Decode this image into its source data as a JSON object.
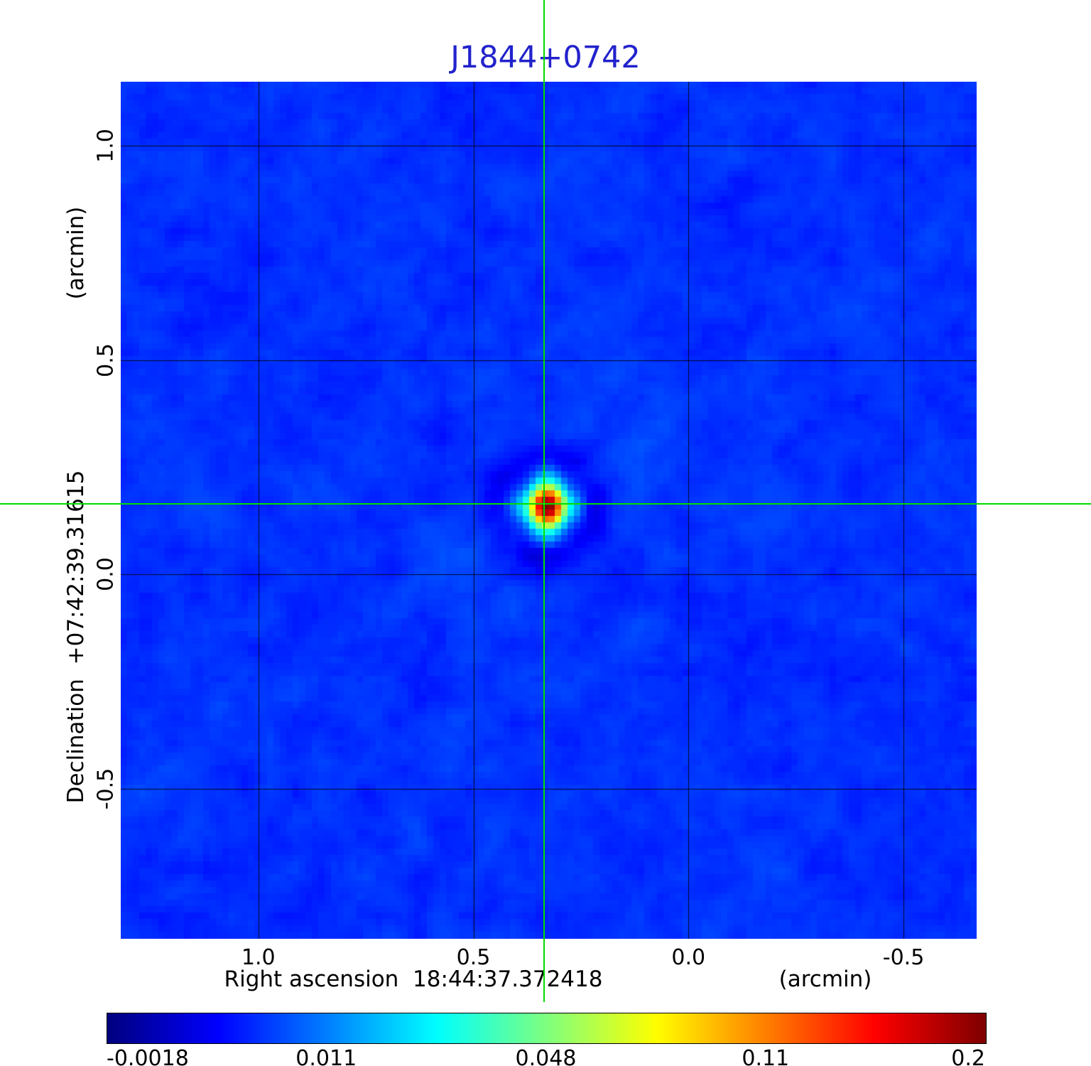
{
  "figure": {
    "title": "J1844+0742",
    "title_color": "#2222cc"
  },
  "y_axis": {
    "label": "Declination  +07:42:39.31615",
    "unit": "(arcmin)",
    "ticks": [
      "1.0",
      "0.5",
      "0.0",
      "-0.5"
    ]
  },
  "x_axis": {
    "label": "Right ascension  18:44:37.372418",
    "unit": "(arcmin)",
    "ticks": [
      "1.0",
      "0.5",
      "0.0",
      "-0.5"
    ]
  },
  "colorbar": {
    "ticks": [
      "-0.0018",
      "0.011",
      "0.048",
      "0.11",
      "0.2"
    ]
  },
  "chart_data": {
    "type": "heatmap",
    "title": "J1844+0742",
    "xlabel": "Right ascension 18:44:37.372418 (arcmin)",
    "ylabel": "Declination +07:42:39.31615 (arcmin)",
    "x_range_arcmin": [
      1.32,
      -0.67
    ],
    "y_range_arcmin": [
      -0.85,
      1.15
    ],
    "x_ticks_arcmin": [
      1.0,
      0.5,
      0.0,
      -0.5
    ],
    "y_ticks_arcmin": [
      1.0,
      0.5,
      0.0,
      -0.5
    ],
    "grid": true,
    "colormap": "jet",
    "color_scale": "sqrt",
    "value_min": -0.0018,
    "value_max": 0.2,
    "colorbar_ticks": [
      -0.0018,
      0.011,
      0.048,
      0.11,
      0.2
    ],
    "background_level": 0.004,
    "source": {
      "x_arcmin": 0.335,
      "y_arcmin": 0.165,
      "peak": 0.2
    },
    "crosshair": {
      "x_arcmin": 0.335,
      "y_arcmin": 0.165,
      "color": "#00dd00"
    }
  }
}
